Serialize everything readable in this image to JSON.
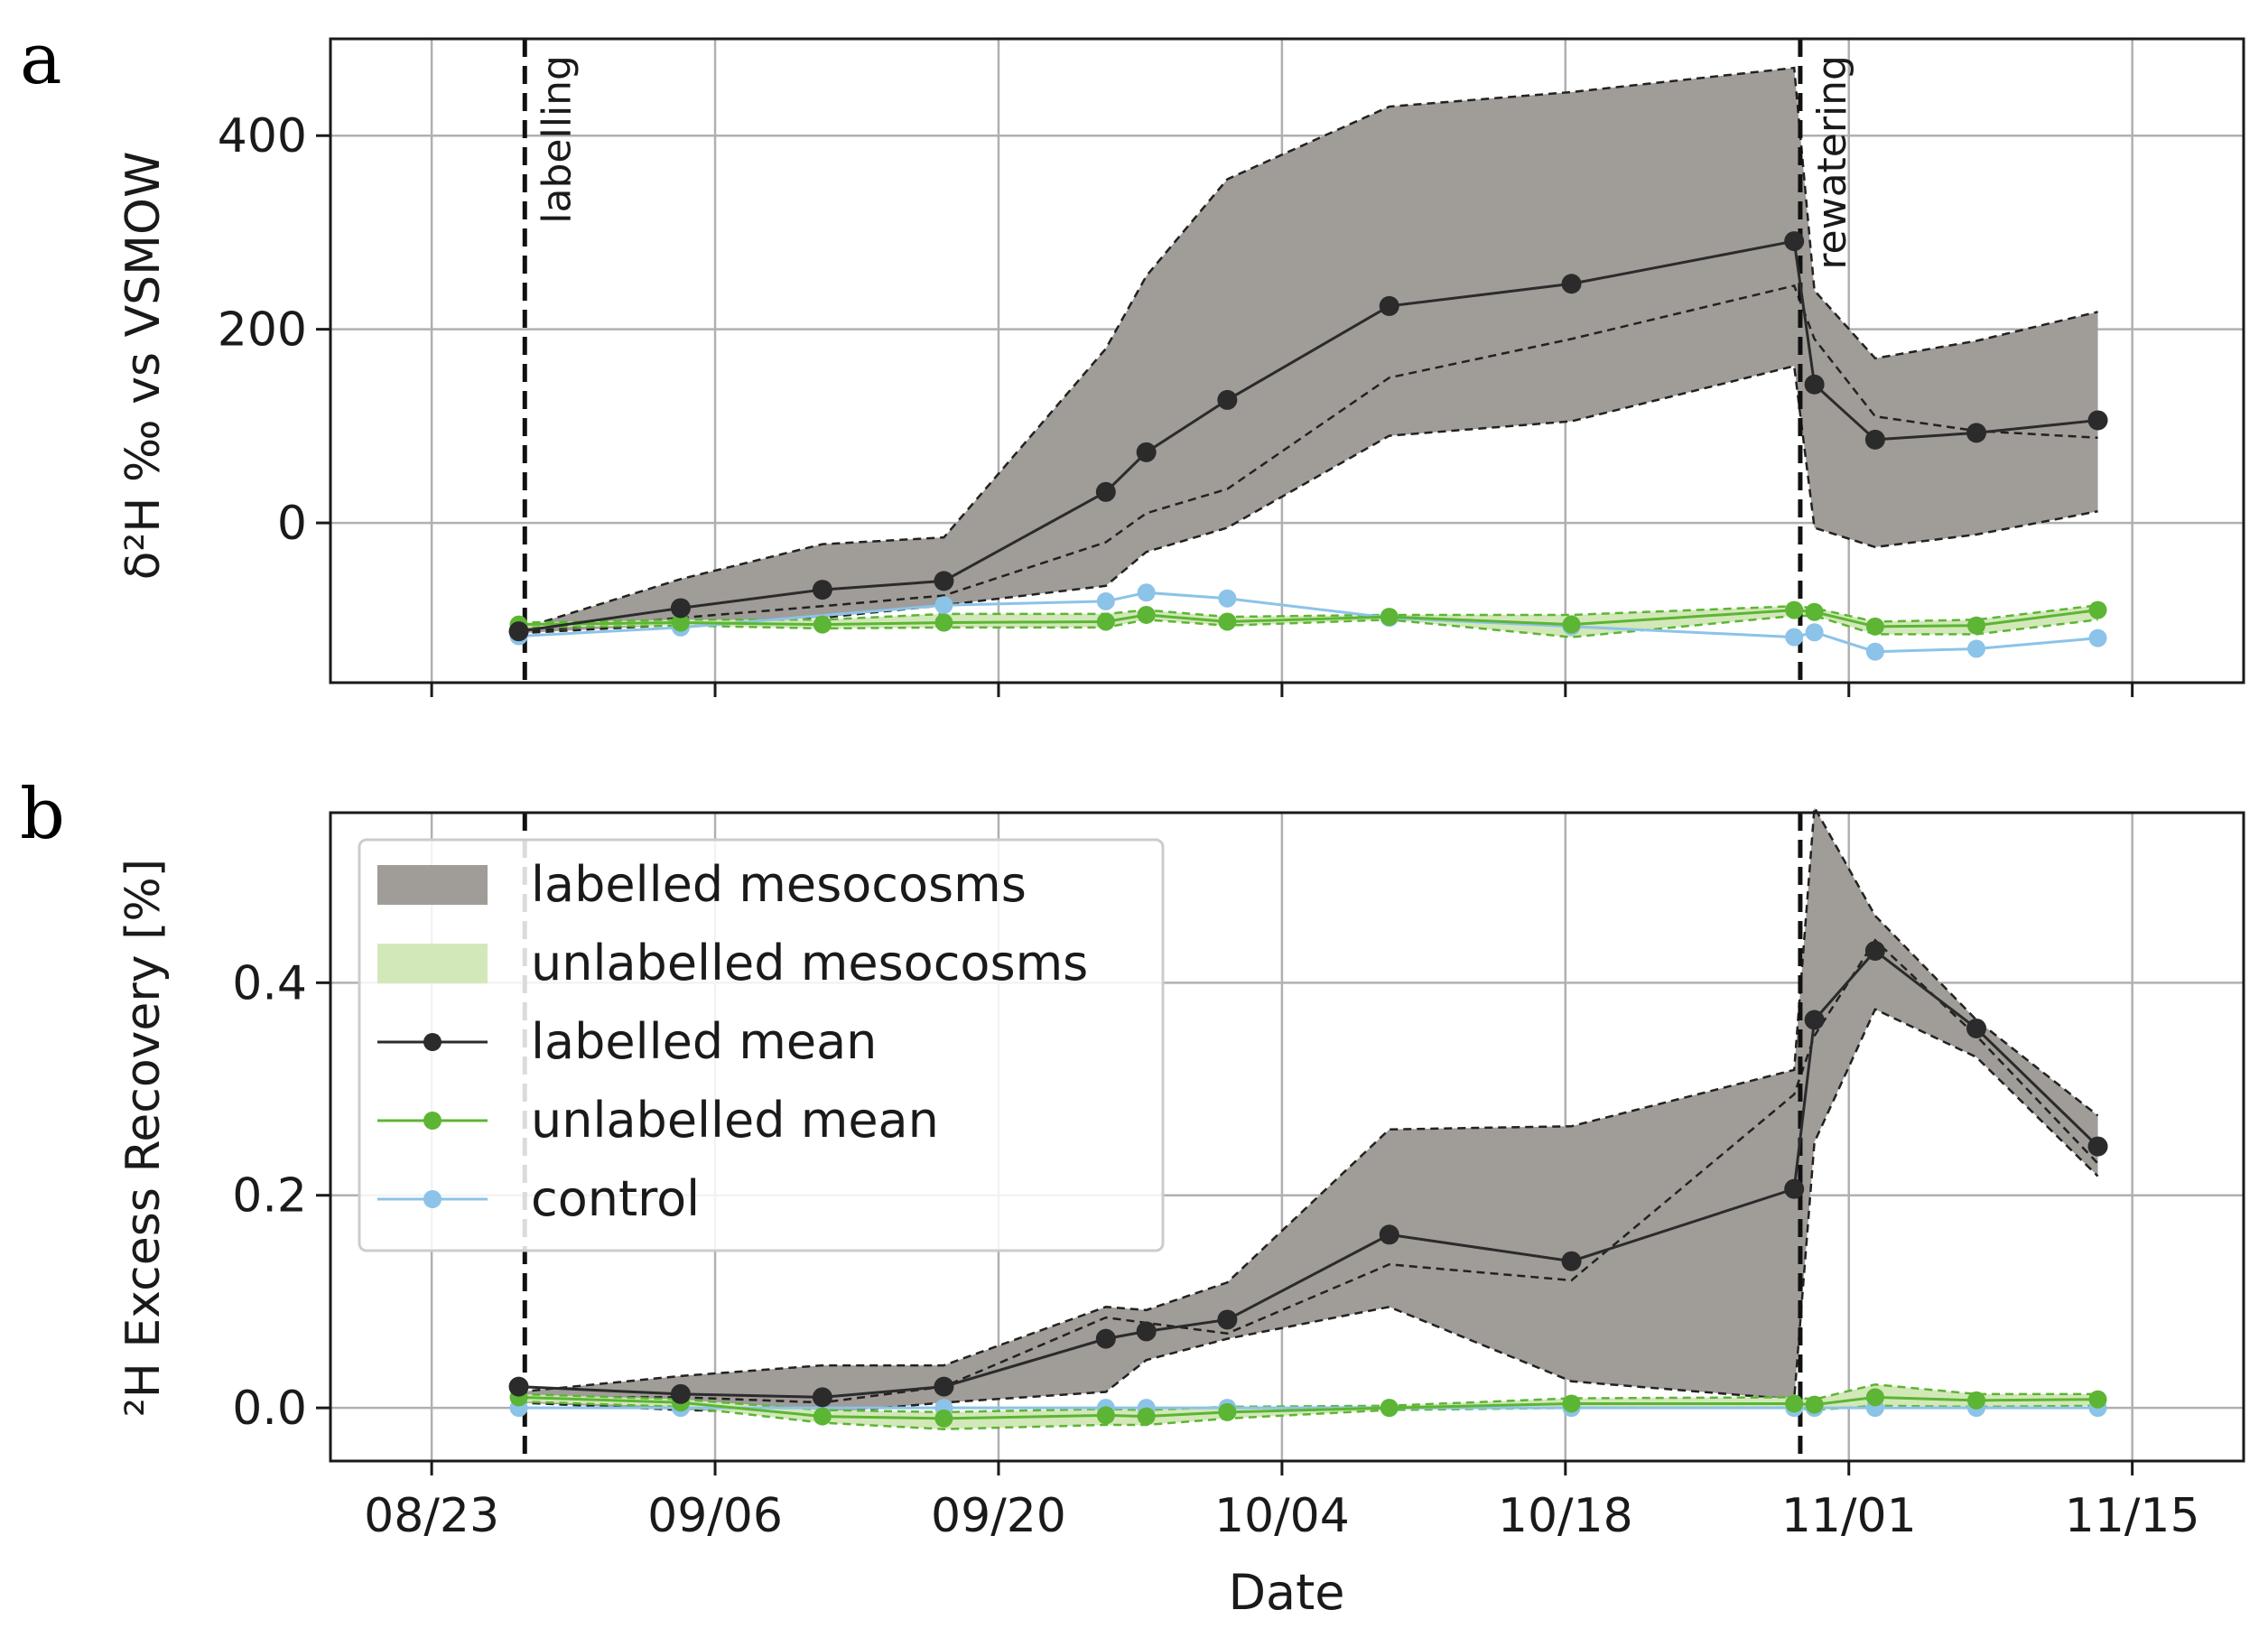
{
  "panel_labels": [
    "a",
    "b"
  ],
  "xlabel": "Date",
  "x_ticks": [
    {
      "day": 0,
      "label": "08/23"
    },
    {
      "day": 14,
      "label": "09/06"
    },
    {
      "day": 28,
      "label": "09/20"
    },
    {
      "day": 42,
      "label": "10/04"
    },
    {
      "day": 56,
      "label": "10/18"
    },
    {
      "day": 70,
      "label": "11/01"
    },
    {
      "day": 84,
      "label": "11/15"
    }
  ],
  "events": [
    {
      "day": 4.6,
      "label": "labelling"
    },
    {
      "day": 67.6,
      "label": "rewatering"
    }
  ],
  "legend": [
    {
      "label": "labelled mesocosms",
      "kind": "band",
      "color": "#a09c98"
    },
    {
      "label": "unlabelled mesocosms",
      "kind": "band",
      "color": "#d3e8b9"
    },
    {
      "label": "labelled mean",
      "kind": "line",
      "color": "#2b2b2b"
    },
    {
      "label": "unlabelled mean",
      "kind": "line",
      "color": "#5cb534"
    },
    {
      "label": "control",
      "kind": "line",
      "color": "#8cc3e8"
    }
  ],
  "colors": {
    "labelled_band": "#a09c98",
    "unlabelled_band": "#d3e8b9",
    "labelled_line": "#2b2b2b",
    "unlabelled_line": "#5cb534",
    "control_line": "#8cc3e8",
    "grid": "#b0b0b0"
  },
  "chart_data": [
    {
      "type": "line",
      "panel": "a",
      "ylabel": "δ²H ‰ vs VSMOW",
      "x_unit": "days since 08/23",
      "xlim": [
        -5,
        89.5
      ],
      "ylim": [
        -165,
        500
      ],
      "yticks": [
        0,
        200,
        400
      ],
      "grid": true,
      "series": [
        {
          "name": "labelled mean",
          "x": [
            4.3,
            12.3,
            19.3,
            25.3,
            33.3,
            35.3,
            39.3,
            47.3,
            56.3,
            67.3,
            68.3,
            71.3,
            76.3,
            82.3
          ],
          "y": [
            -112,
            -88,
            -69,
            -60,
            32,
            73,
            127,
            224,
            247,
            291,
            143,
            86,
            93,
            106
          ]
        },
        {
          "name": "labelled mesocosms max",
          "x": [
            4.3,
            12.3,
            19.3,
            25.3,
            33.3,
            35.3,
            39.3,
            47.3,
            56.3,
            67.3,
            68.3,
            71.3,
            76.3,
            82.3
          ],
          "y": [
            -110,
            -58,
            -22,
            -15,
            180,
            255,
            355,
            430,
            445,
            470,
            240,
            170,
            188,
            218
          ]
        },
        {
          "name": "labelled mesocosms min",
          "x": [
            4.3,
            12.3,
            19.3,
            25.3,
            33.3,
            35.3,
            39.3,
            47.3,
            56.3,
            67.3,
            68.3,
            71.3,
            76.3,
            82.3
          ],
          "y": [
            -114,
            -105,
            -98,
            -85,
            -65,
            -30,
            -5,
            90,
            105,
            162,
            -5,
            -25,
            -12,
            12
          ]
        },
        {
          "name": "labelled mesocosms middle",
          "x": [
            4.3,
            12.3,
            19.3,
            25.3,
            33.3,
            35.3,
            39.3,
            47.3,
            56.3,
            67.3,
            68.3,
            71.3,
            76.3,
            82.3
          ],
          "y": [
            -113,
            -98,
            -86,
            -75,
            -20,
            10,
            35,
            150,
            190,
            245,
            190,
            110,
            95,
            88
          ]
        },
        {
          "name": "unlabelled mean",
          "x": [
            4.3,
            12.3,
            19.3,
            25.3,
            33.3,
            35.3,
            39.3,
            47.3,
            56.3,
            67.3,
            68.3,
            71.3,
            76.3,
            82.3
          ],
          "y": [
            -105,
            -103,
            -105,
            -103,
            -102,
            -95,
            -102,
            -97,
            -105,
            -90,
            -92,
            -107,
            -106,
            -90
          ]
        },
        {
          "name": "unlabelled mesocosms max",
          "x": [
            4.3,
            12.3,
            19.3,
            25.3,
            33.3,
            35.3,
            39.3,
            47.3,
            56.3,
            67.3,
            68.3,
            71.3,
            76.3,
            82.3
          ],
          "y": [
            -103,
            -100,
            -100,
            -94,
            -94,
            -90,
            -97,
            -95,
            -95,
            -86,
            -88,
            -102,
            -100,
            -85
          ]
        },
        {
          "name": "unlabelled mesocosms min",
          "x": [
            4.3,
            12.3,
            19.3,
            25.3,
            33.3,
            35.3,
            39.3,
            47.3,
            56.3,
            67.3,
            68.3,
            71.3,
            76.3,
            82.3
          ],
          "y": [
            -108,
            -106,
            -109,
            -108,
            -108,
            -100,
            -106,
            -100,
            -118,
            -96,
            -96,
            -115,
            -115,
            -100
          ]
        },
        {
          "name": "control",
          "x": [
            4.3,
            12.3,
            25.3,
            33.3,
            35.3,
            39.3,
            47.3,
            56.3,
            67.3,
            68.3,
            71.3,
            76.3,
            82.3
          ],
          "y": [
            -117,
            -108,
            -85,
            -81,
            -72,
            -78,
            -98,
            -107,
            -118,
            -113,
            -133,
            -130,
            -119
          ]
        }
      ]
    },
    {
      "type": "line",
      "panel": "b",
      "ylabel": "²H Excess Recovery [%]",
      "x_unit": "days since 08/23",
      "xlim": [
        -5,
        89.5
      ],
      "ylim": [
        -0.05,
        0.56
      ],
      "yticks": [
        0.0,
        0.2,
        0.4
      ],
      "ytick_labels": [
        "0.0",
        "0.2",
        "0.4"
      ],
      "grid": true,
      "legend_position": "upper-left",
      "series": [
        {
          "name": "labelled mean",
          "x": [
            4.3,
            12.3,
            19.3,
            25.3,
            33.3,
            35.3,
            39.3,
            47.3,
            56.3,
            67.3,
            68.3,
            71.3,
            76.3,
            82.3
          ],
          "y": [
            0.02,
            0.013,
            0.01,
            0.02,
            0.065,
            0.072,
            0.083,
            0.163,
            0.138,
            0.206,
            0.365,
            0.43,
            0.357,
            0.246
          ]
        },
        {
          "name": "labelled mesocosms max",
          "x": [
            4.3,
            12.3,
            19.3,
            25.3,
            33.3,
            35.3,
            39.3,
            47.3,
            56.3,
            67.3,
            68.3,
            71.3,
            76.3,
            82.3
          ],
          "y": [
            0.015,
            0.03,
            0.04,
            0.04,
            0.095,
            0.092,
            0.118,
            0.262,
            0.265,
            0.318,
            0.565,
            0.463,
            0.365,
            0.275
          ]
        },
        {
          "name": "labelled mesocosms min",
          "x": [
            4.3,
            12.3,
            19.3,
            25.3,
            33.3,
            35.3,
            39.3,
            47.3,
            56.3,
            67.3,
            68.3,
            71.3,
            76.3,
            82.3
          ],
          "y": [
            0.005,
            -0.002,
            -0.005,
            0.005,
            0.015,
            0.045,
            0.065,
            0.095,
            0.025,
            0.008,
            0.25,
            0.375,
            0.33,
            0.218
          ]
        },
        {
          "name": "labelled mesocosms middle",
          "x": [
            4.3,
            12.3,
            19.3,
            25.3,
            33.3,
            35.3,
            39.3,
            47.3,
            56.3,
            67.3,
            68.3,
            71.3,
            76.3,
            82.3
          ],
          "y": [
            0.01,
            0.01,
            0.005,
            0.02,
            0.085,
            0.08,
            0.07,
            0.135,
            0.12,
            0.295,
            0.35,
            0.44,
            0.35,
            0.23
          ]
        },
        {
          "name": "unlabelled mean",
          "x": [
            4.3,
            12.3,
            19.3,
            25.3,
            33.3,
            35.3,
            39.3,
            47.3,
            56.3,
            67.3,
            68.3,
            71.3,
            76.3,
            82.3
          ],
          "y": [
            0.01,
            0.005,
            -0.008,
            -0.01,
            -0.007,
            -0.008,
            -0.004,
            0.0,
            0.004,
            0.004,
            0.003,
            0.01,
            0.007,
            0.008
          ]
        },
        {
          "name": "unlabelled mesocosms max",
          "x": [
            4.3,
            12.3,
            19.3,
            25.3,
            33.3,
            35.3,
            39.3,
            47.3,
            56.3,
            67.3,
            68.3,
            71.3,
            76.3,
            82.3
          ],
          "y": [
            0.013,
            0.008,
            -0.002,
            -0.004,
            -0.001,
            -0.002,
            0.001,
            0.002,
            0.009,
            0.01,
            0.008,
            0.022,
            0.013,
            0.013
          ]
        },
        {
          "name": "unlabelled mesocosms min",
          "x": [
            4.3,
            12.3,
            19.3,
            25.3,
            33.3,
            35.3,
            39.3,
            47.3,
            56.3,
            67.3,
            68.3,
            71.3,
            76.3,
            82.3
          ],
          "y": [
            0.006,
            0.001,
            -0.014,
            -0.02,
            -0.016,
            -0.016,
            -0.01,
            -0.002,
            0.0,
            0.0,
            -0.002,
            0.002,
            0.001,
            0.002
          ]
        },
        {
          "name": "control",
          "x": [
            4.3,
            12.3,
            25.3,
            33.3,
            35.3,
            39.3,
            47.3,
            56.3,
            67.3,
            68.3,
            71.3,
            76.3,
            82.3
          ],
          "y": [
            0.0,
            0.0,
            0.0,
            0.0,
            0.0,
            0.0,
            0.0,
            0.0,
            0.0,
            0.0,
            0.0,
            0.0,
            0.0
          ]
        }
      ]
    }
  ]
}
